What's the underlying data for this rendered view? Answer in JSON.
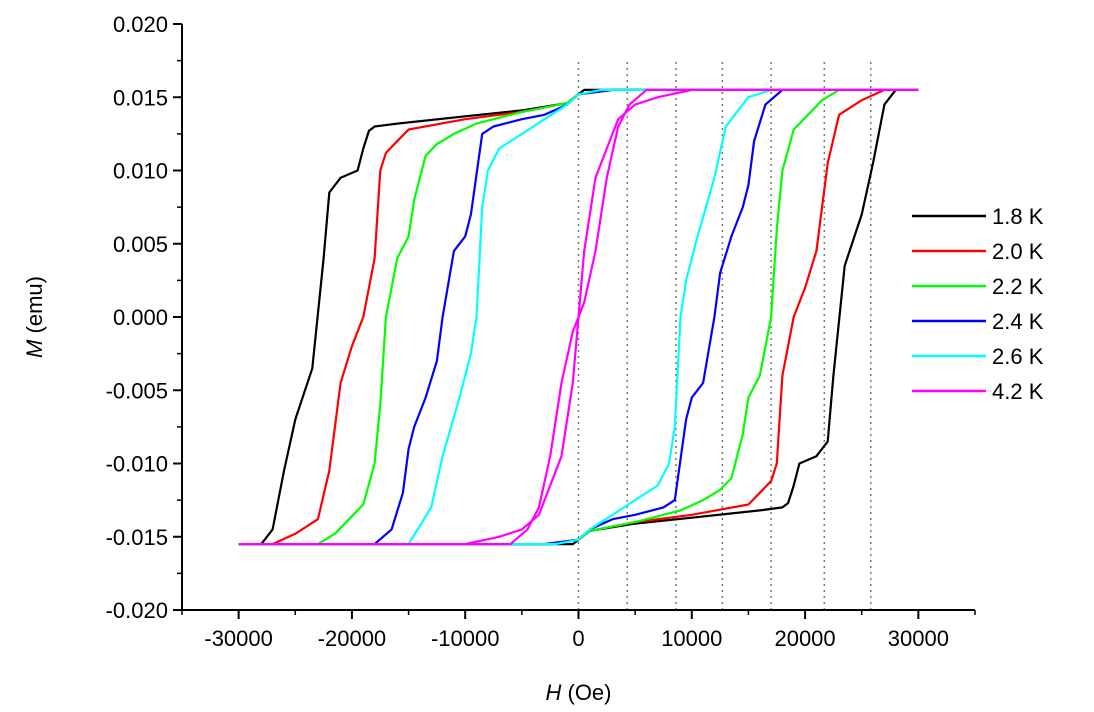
{
  "chart_data": {
    "type": "line",
    "xlabel": {
      "symbol": "H",
      "unit": " (Oe)"
    },
    "ylabel": {
      "symbol": "M",
      "unit": " (emu)"
    },
    "xlim": [
      -35000,
      35000
    ],
    "ylim": [
      -0.02,
      0.02
    ],
    "x_ticks": [
      -30000,
      -20000,
      -10000,
      0,
      10000,
      20000,
      30000
    ],
    "x_tick_labels": [
      "-30000",
      "-20000",
      "-10000",
      "0",
      "10000",
      "20000",
      "30000"
    ],
    "y_ticks": [
      -0.02,
      -0.015,
      -0.01,
      -0.005,
      0.0,
      0.005,
      0.01,
      0.015,
      0.02
    ],
    "y_tick_labels": [
      "-0.020",
      "-0.015",
      "-0.010",
      "-0.005",
      "0.000",
      "0.005",
      "0.010",
      "0.015",
      "0.020"
    ],
    "grid": false,
    "vertical_reference_lines": [
      0,
      4300,
      8600,
      12700,
      17000,
      21700,
      25800
    ],
    "legend_position": "right",
    "series": [
      {
        "name": "1.8 K",
        "color": "#000000",
        "x": [
          -30000,
          -28000,
          -27000,
          -26000,
          -25000,
          -23500,
          -22500,
          -22000,
          -21000,
          -19500,
          -19000,
          -18500,
          -18000,
          -16000,
          -10000,
          -5000,
          -1000,
          0,
          500,
          2000,
          5000,
          10000,
          15000,
          17000,
          18000,
          18500,
          19000,
          20000,
          21000,
          22000,
          22300,
          22700,
          23000,
          24000,
          25000,
          26000,
          27000,
          28000,
          30000
        ],
        "y": [
          -0.0155,
          -0.0155,
          -0.0145,
          -0.0105,
          -0.007,
          -0.0035,
          0.004,
          0.0085,
          0.0095,
          0.01,
          0.0115,
          0.0127,
          0.013,
          0.0132,
          0.0137,
          0.0141,
          0.0146,
          0.0152,
          0.0155,
          0.0155,
          0.0155,
          0.0155,
          0.0155,
          0.0155,
          0.0155,
          0.0155,
          0.0155,
          0.0155,
          0.0155,
          0.0155,
          0.0155,
          0.0155,
          0.0155,
          0.0155,
          0.0155,
          0.0155,
          0.0155,
          0.0155,
          0.0155
        ]
      },
      {
        "name": "1.8 K (return)",
        "color": "#000000",
        "x": [
          30000,
          28000,
          27000,
          26000,
          25000,
          23500,
          22500,
          22000,
          21000,
          19500,
          19000,
          18500,
          18000,
          16000,
          10000,
          5000,
          1000,
          0,
          -500,
          -2000,
          -5000,
          -10000,
          -20000,
          -30000
        ],
        "y": [
          0.0155,
          0.0155,
          0.0145,
          0.0105,
          0.007,
          0.0035,
          -0.004,
          -0.0085,
          -0.0095,
          -0.01,
          -0.0115,
          -0.0127,
          -0.013,
          -0.0132,
          -0.0137,
          -0.0141,
          -0.0146,
          -0.0152,
          -0.0155,
          -0.0155,
          -0.0155,
          -0.0155,
          -0.0155,
          -0.0155
        ]
      },
      {
        "name": "2.0 K",
        "color": "#ff0000",
        "x": [
          -30000,
          -27000,
          -25000,
          -23000,
          -22000,
          -21000,
          -20000,
          -19000,
          -18000,
          -17500,
          -17000,
          -16000,
          -15000,
          -10000,
          -5000,
          -1000,
          0,
          3000,
          10000,
          20000,
          30000
        ],
        "y": [
          -0.0155,
          -0.0155,
          -0.0148,
          -0.0138,
          -0.0105,
          -0.0045,
          -0.002,
          0.0,
          0.004,
          0.01,
          0.0112,
          0.012,
          0.0128,
          0.0135,
          0.014,
          0.0146,
          0.0152,
          0.0155,
          0.0155,
          0.0155,
          0.0155
        ]
      },
      {
        "name": "2.0 K (return)",
        "color": "#ff0000",
        "x": [
          30000,
          27000,
          25000,
          23000,
          22000,
          21000,
          20000,
          19000,
          18000,
          17500,
          17000,
          16000,
          15000,
          10000,
          5000,
          1000,
          0,
          -3000,
          -10000,
          -20000,
          -30000
        ],
        "y": [
          0.0155,
          0.0155,
          0.0148,
          0.0138,
          0.0105,
          0.0045,
          0.002,
          0.0,
          -0.004,
          -0.01,
          -0.0112,
          -0.012,
          -0.0128,
          -0.0135,
          -0.014,
          -0.0146,
          -0.0152,
          -0.0155,
          -0.0155,
          -0.0155,
          -0.0155
        ]
      },
      {
        "name": "2.2 K",
        "color": "#00ff00",
        "x": [
          -30000,
          -23000,
          -21500,
          -19000,
          -18000,
          -17500,
          -17000,
          -16000,
          -15000,
          -14500,
          -13500,
          -12500,
          -11000,
          -9000,
          -5000,
          -1000,
          0,
          3000,
          10000,
          20000,
          30000
        ],
        "y": [
          -0.0155,
          -0.0155,
          -0.0148,
          -0.0128,
          -0.01,
          -0.006,
          0.0,
          0.004,
          0.0055,
          0.008,
          0.011,
          0.0118,
          0.0125,
          0.0132,
          0.014,
          0.0146,
          0.0152,
          0.0155,
          0.0155,
          0.0155,
          0.0155
        ]
      },
      {
        "name": "2.2 K (return)",
        "color": "#00ff00",
        "x": [
          30000,
          23000,
          21500,
          19000,
          18000,
          17500,
          17000,
          16000,
          15000,
          14500,
          13500,
          12500,
          11000,
          9000,
          5000,
          1000,
          0,
          -3000,
          -10000,
          -20000,
          -30000
        ],
        "y": [
          0.0155,
          0.0155,
          0.0148,
          0.0128,
          0.01,
          0.006,
          0.0,
          -0.004,
          -0.0055,
          -0.008,
          -0.011,
          -0.0118,
          -0.0125,
          -0.0132,
          -0.014,
          -0.0146,
          -0.0152,
          -0.0155,
          -0.0155,
          -0.0155,
          -0.0155
        ]
      },
      {
        "name": "2.4 K",
        "color": "#0000ff",
        "x": [
          -30000,
          -18000,
          -16500,
          -15500,
          -15000,
          -14500,
          -13500,
          -12500,
          -12000,
          -11000,
          -10000,
          -9500,
          -8500,
          -7500,
          -5000,
          -3000,
          -1000,
          0,
          3000,
          10000,
          20000,
          30000
        ],
        "y": [
          -0.0155,
          -0.0155,
          -0.0145,
          -0.012,
          -0.009,
          -0.0075,
          -0.0055,
          -0.003,
          0.0,
          0.0045,
          0.0055,
          0.007,
          0.0125,
          0.013,
          0.0135,
          0.0138,
          0.0145,
          0.0152,
          0.0155,
          0.0155,
          0.0155,
          0.0155
        ]
      },
      {
        "name": "2.4 K (return)",
        "color": "#0000ff",
        "x": [
          30000,
          18000,
          16500,
          15500,
          15000,
          14500,
          13500,
          12500,
          12000,
          11000,
          10000,
          9500,
          8500,
          7500,
          5000,
          3000,
          1000,
          0,
          -3000,
          -10000,
          -20000,
          -30000
        ],
        "y": [
          0.0155,
          0.0155,
          0.0145,
          0.012,
          0.009,
          0.0075,
          0.0055,
          0.003,
          0.0,
          -0.0045,
          -0.0055,
          -0.007,
          -0.0125,
          -0.013,
          -0.0135,
          -0.0138,
          -0.0145,
          -0.0152,
          -0.0155,
          -0.0155,
          -0.0155,
          -0.0155
        ]
      },
      {
        "name": "2.6 K",
        "color": "#00ffff",
        "x": [
          -30000,
          -15000,
          -13000,
          -12000,
          -10500,
          -9500,
          -9000,
          -8500,
          -8000,
          -7000,
          -5000,
          -3000,
          -1000,
          0,
          2000,
          10000,
          20000,
          30000
        ],
        "y": [
          -0.0155,
          -0.0155,
          -0.013,
          -0.0095,
          -0.0055,
          -0.0025,
          0.0,
          0.0075,
          0.01,
          0.0115,
          0.0125,
          0.0135,
          0.0145,
          0.0152,
          0.0155,
          0.0155,
          0.0155,
          0.0155
        ]
      },
      {
        "name": "2.6 K (return)",
        "color": "#00ffff",
        "x": [
          30000,
          17000,
          15000,
          13000,
          12000,
          10500,
          9500,
          9000,
          8500,
          8000,
          7000,
          5000,
          3000,
          1000,
          0,
          -2000,
          -10000,
          -20000,
          -30000
        ],
        "y": [
          0.0155,
          0.0155,
          0.015,
          0.013,
          0.0095,
          0.0055,
          0.0025,
          0.0,
          -0.0075,
          -0.01,
          -0.0115,
          -0.0125,
          -0.0135,
          -0.0145,
          -0.0152,
          -0.0155,
          -0.0155,
          -0.0155,
          -0.0155
        ]
      },
      {
        "name": "4.2 K",
        "color": "#ff00ff",
        "x": [
          -30000,
          -6000,
          -4500,
          -3500,
          -2500,
          -1500,
          -500,
          0,
          500,
          1500,
          2500,
          3500,
          5000,
          7000,
          10000,
          20000,
          30000
        ],
        "y": [
          -0.0155,
          -0.0155,
          -0.0145,
          -0.013,
          -0.0095,
          -0.0045,
          -0.001,
          0.0,
          0.0045,
          0.0095,
          0.0115,
          0.0135,
          0.0145,
          0.015,
          0.0155,
          0.0155,
          0.0155
        ]
      },
      {
        "name": "4.2 K (return)",
        "color": "#ff00ff",
        "x": [
          30000,
          6000,
          4500,
          3500,
          2500,
          1500,
          500,
          0,
          -500,
          -1500,
          -2500,
          -3500,
          -5000,
          -7000,
          -10000,
          -20000,
          -30000
        ],
        "y": [
          0.0155,
          0.0155,
          0.0145,
          0.013,
          0.0095,
          0.0045,
          0.001,
          0.0,
          -0.0045,
          -0.0095,
          -0.0115,
          -0.0135,
          -0.0145,
          -0.015,
          -0.0155,
          -0.0155,
          -0.0155
        ]
      }
    ],
    "legend": [
      {
        "label": "1.8 K",
        "color": "#000000"
      },
      {
        "label": "2.0 K",
        "color": "#ff0000"
      },
      {
        "label": "2.2 K",
        "color": "#00ff00"
      },
      {
        "label": "2.4 K",
        "color": "#0000ff"
      },
      {
        "label": "2.6 K",
        "color": "#00ffff"
      },
      {
        "label": "4.2 K",
        "color": "#ff00ff"
      }
    ]
  }
}
